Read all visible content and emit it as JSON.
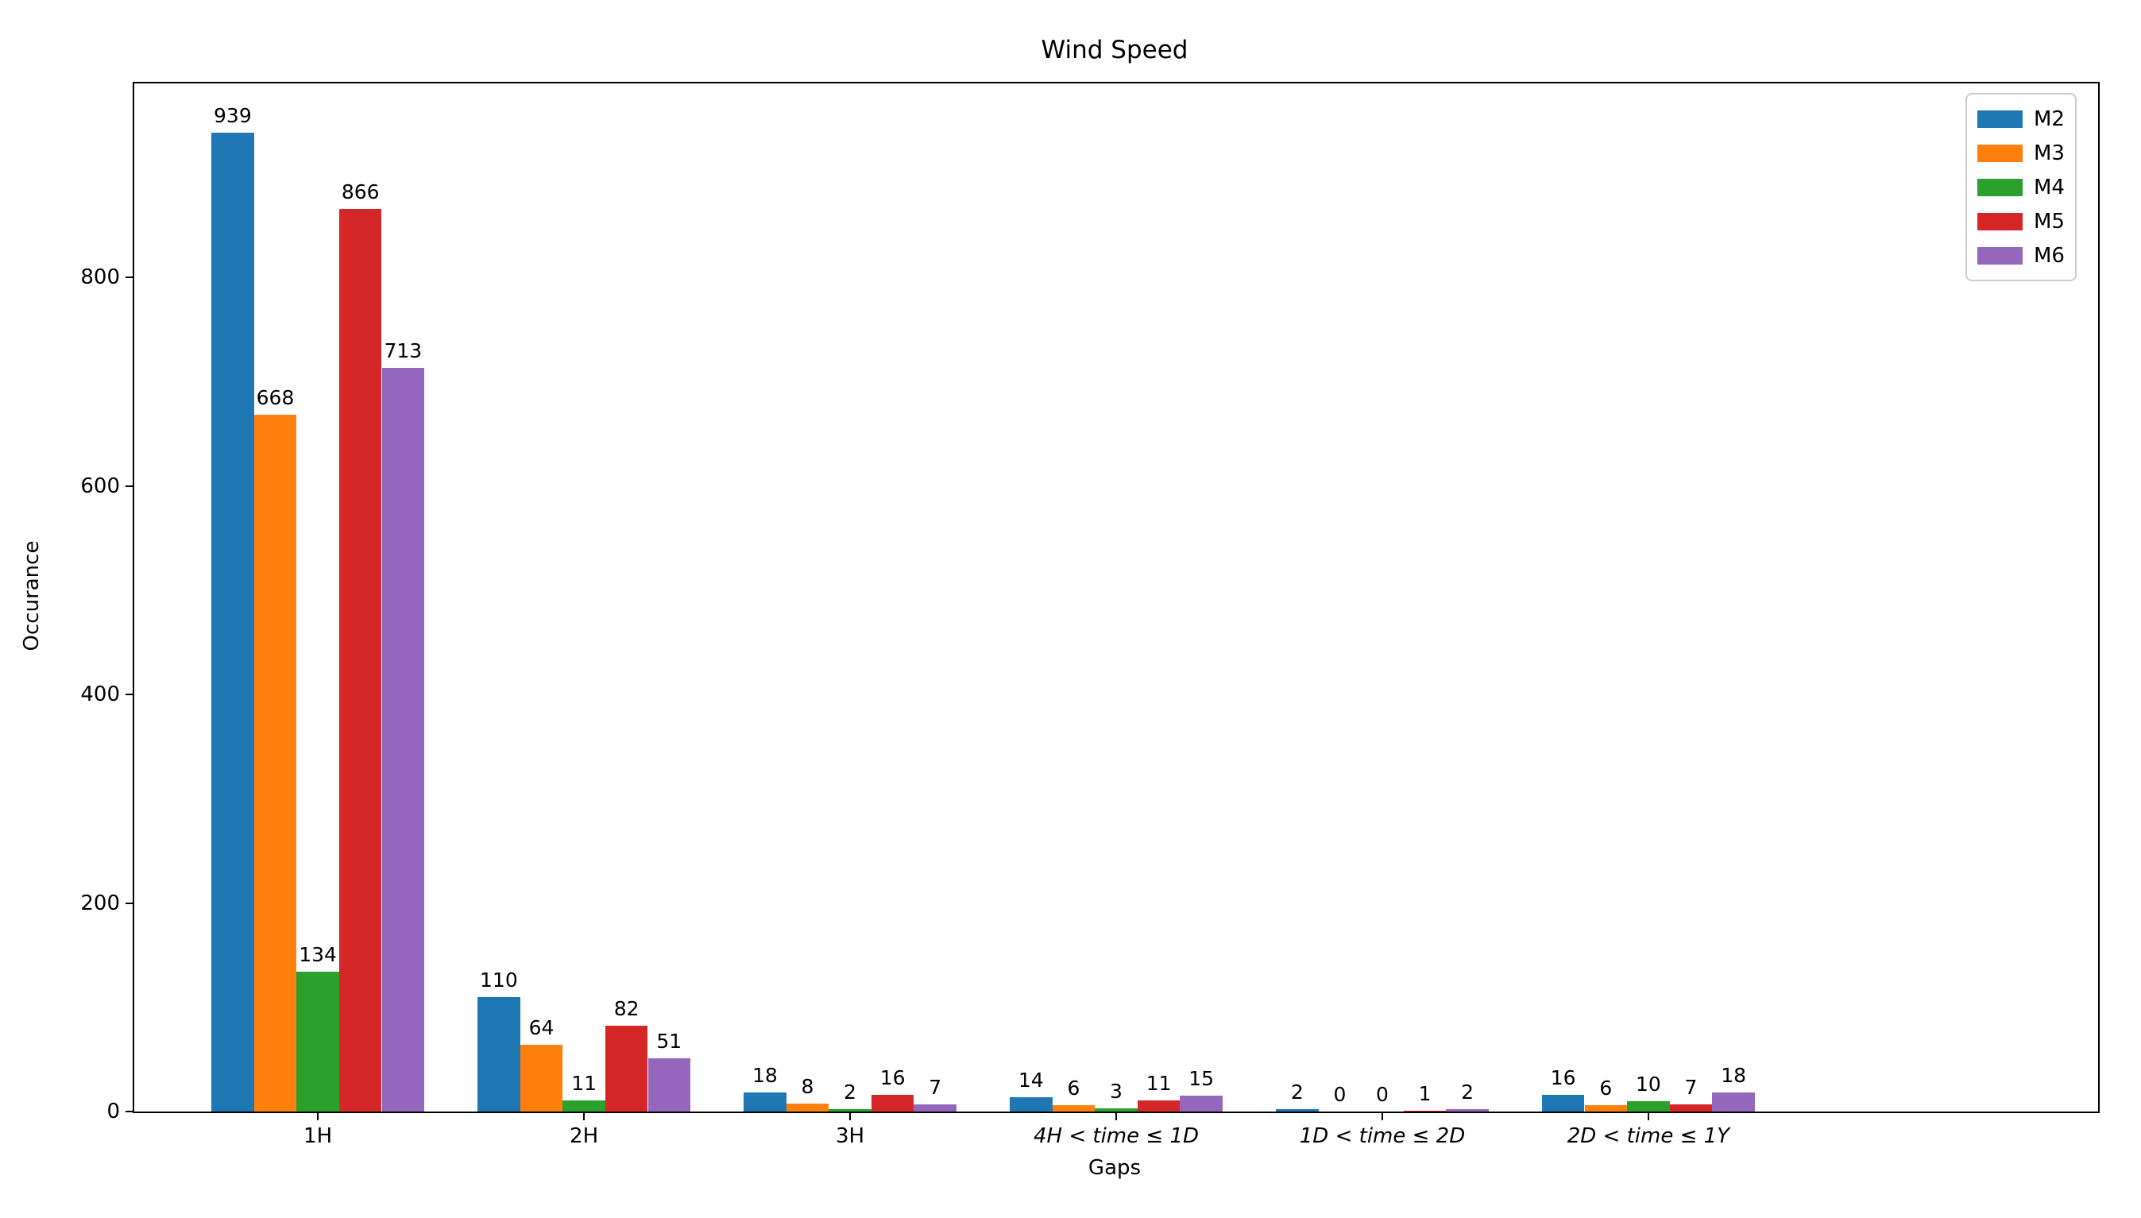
{
  "chart_data": {
    "type": "bar",
    "title": "Wind Speed",
    "xlabel": "Gaps",
    "ylabel": "Occurance",
    "categories": [
      "1H",
      "2H",
      "3H",
      "4H < time ≤ 1D",
      "1D < time ≤ 2D",
      "2D < time ≤ 1Y"
    ],
    "categories_italic": [
      false,
      false,
      false,
      true,
      true,
      true
    ],
    "series": [
      {
        "name": "M2",
        "color": "#1f77b4",
        "values": [
          939,
          110,
          18,
          14,
          2,
          16
        ]
      },
      {
        "name": "M3",
        "color": "#ff7f0e",
        "values": [
          668,
          64,
          8,
          6,
          0,
          6
        ]
      },
      {
        "name": "M4",
        "color": "#2ca02c",
        "values": [
          134,
          11,
          2,
          3,
          0,
          10
        ]
      },
      {
        "name": "M5",
        "color": "#d62728",
        "values": [
          866,
          82,
          16,
          11,
          1,
          7
        ]
      },
      {
        "name": "M6",
        "color": "#9467bd",
        "values": [
          713,
          51,
          7,
          15,
          2,
          18
        ]
      }
    ],
    "yticks": [
      0,
      200,
      400,
      600,
      800
    ],
    "ylim": [
      0,
      986
    ],
    "grid": false,
    "bar_value_labels": true,
    "legend_position": "upper right",
    "axis_color": "#000000",
    "background_color": "#ffffff"
  }
}
